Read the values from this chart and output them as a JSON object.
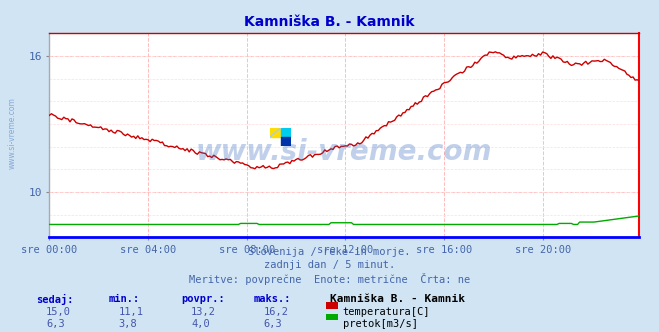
{
  "title": "Kamniška B. - Kamnik",
  "title_color": "#0000cc",
  "bg_color": "#d0e4f4",
  "plot_bg_color": "#ffffff",
  "grid_color": "#ffbbbb",
  "grid_x_color": "#ddbbbb",
  "tick_label_color": "#4466aa",
  "x_tick_labels": [
    "sre 00:00",
    "sre 04:00",
    "sre 08:00",
    "sre 12:00",
    "sre 16:00",
    "sre 20:00"
  ],
  "x_tick_positions": [
    0,
    48,
    96,
    144,
    192,
    240
  ],
  "ylim": [
    8.0,
    17.0
  ],
  "y_ticks": [
    10,
    16
  ],
  "y2lim": [
    0,
    100
  ],
  "n_points": 288,
  "footer_line1": "Slovenija / reke in morje.",
  "footer_line2": "zadnji dan / 5 minut.",
  "footer_line3": "Meritve: povprečne  Enote: metrične  Črta: ne",
  "legend_title": "Kamniška B. - Kamnik",
  "stats_headers": [
    "sedaj:",
    "min.:",
    "povpr.:",
    "maks.:"
  ],
  "temp_stats": [
    "15,0",
    "11,1",
    "13,2",
    "16,2"
  ],
  "flow_stats": [
    "6,3",
    "3,8",
    "4,0",
    "6,3"
  ],
  "temp_label": "temperatura[C]",
  "flow_label": "pretok[m3/s]",
  "temp_color": "#cc0000",
  "flow_color": "#00aa00",
  "border_top_color": "#cc0000",
  "border_bottom_color": "#0000ff",
  "border_left_color": "#aaaaaa",
  "border_right_color": "#ff0000",
  "watermark": "www.si-vreme.com",
  "watermark_color": "#3366bb",
  "side_watermark_color": "#7799cc",
  "logo_yellow": "#ffdd00",
  "logo_cyan": "#00ccee",
  "logo_blue": "#0033aa"
}
